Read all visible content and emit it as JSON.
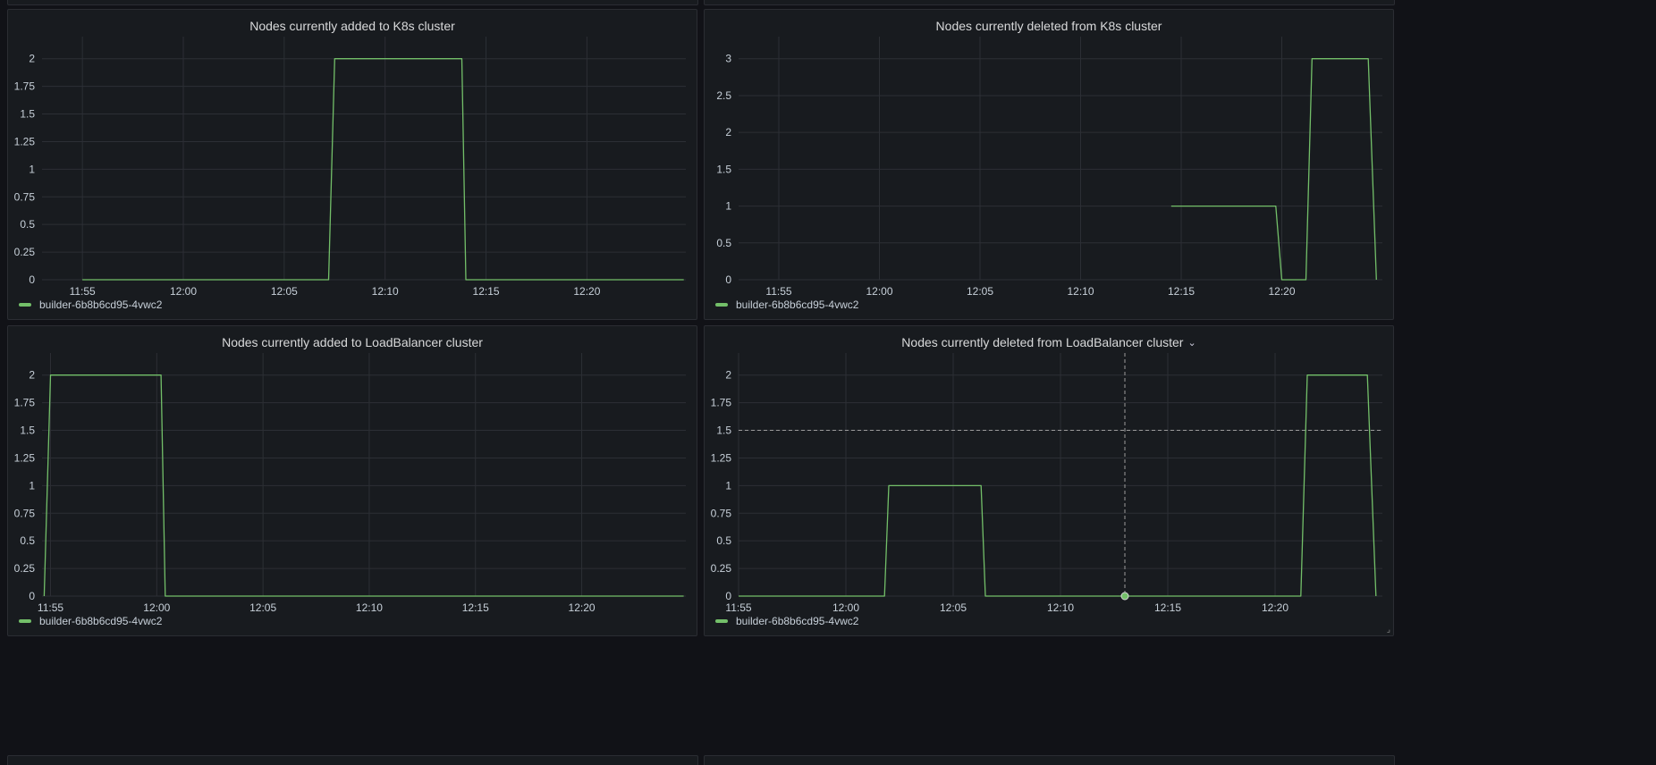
{
  "theme": {
    "background": "#111217",
    "panel_background": "#181b1f",
    "panel_border": "#2b2d33",
    "grid": "#2c2f35",
    "text": "#c7d0d9",
    "title": "#d8d9da",
    "series": "#73bf69",
    "crosshair": "#9b9b9b"
  },
  "panels": [
    {
      "title": "Nodes currently added to K8s cluster",
      "has_menu": false,
      "legend": {
        "label": "builder-6b8b6cd95-4vwc2"
      },
      "chart_data": {
        "type": "line",
        "title": "Nodes currently added to K8s cluster",
        "xlabel": "",
        "ylabel": "",
        "x_range": [
          "11:53",
          "12:24.9"
        ],
        "x_ticks": [
          "11:55",
          "12:00",
          "12:05",
          "12:10",
          "12:15",
          "12:20"
        ],
        "y_ticks": [
          "0",
          "0.25",
          "0.5",
          "0.75",
          "1",
          "1.25",
          "1.5",
          "1.75",
          "2"
        ],
        "ylim": [
          0,
          2.2
        ],
        "grid": true,
        "legend_placement": "bottom-left",
        "series": [
          {
            "name": "builder-6b8b6cd95-4vwc2",
            "points": [
              [
                "11:55",
                0
              ],
              [
                "12:07.2",
                0
              ],
              [
                "12:07.5",
                2
              ],
              [
                "12:13.8",
                2
              ],
              [
                "12:14",
                0
              ],
              [
                "12:24.8",
                0
              ]
            ]
          }
        ]
      }
    },
    {
      "title": "Nodes currently deleted from K8s cluster",
      "has_menu": false,
      "legend": {
        "label": "builder-6b8b6cd95-4vwc2"
      },
      "chart_data": {
        "type": "line",
        "title": "Nodes currently deleted from K8s cluster",
        "xlabel": "",
        "ylabel": "",
        "x_range": [
          "11:53",
          "12:25"
        ],
        "x_ticks": [
          "11:55",
          "12:00",
          "12:05",
          "12:10",
          "12:15",
          "12:20"
        ],
        "y_ticks": [
          "0",
          "0.5",
          "1",
          "1.5",
          "2",
          "2.5",
          "3"
        ],
        "ylim": [
          0,
          3.3
        ],
        "grid": true,
        "legend_placement": "bottom-left",
        "series": [
          {
            "name": "builder-6b8b6cd95-4vwc2",
            "points": [
              [
                "12:14.5",
                1
              ],
              [
                "12:19.7",
                1
              ],
              [
                "12:20",
                0
              ],
              [
                "12:21.2",
                0
              ],
              [
                "12:21.5",
                3
              ],
              [
                "12:24.3",
                3
              ],
              [
                "12:24.7",
                0
              ]
            ]
          }
        ]
      }
    },
    {
      "title": "Nodes currently added to LoadBalancer cluster",
      "has_menu": false,
      "legend": {
        "label": "builder-6b8b6cd95-4vwc2"
      },
      "chart_data": {
        "type": "line",
        "title": "Nodes currently added to LoadBalancer cluster",
        "xlabel": "",
        "ylabel": "",
        "x_range": [
          "11:54.6",
          "12:24.9"
        ],
        "x_ticks": [
          "11:55",
          "12:00",
          "12:05",
          "12:10",
          "12:15",
          "12:20"
        ],
        "y_ticks": [
          "0",
          "0.25",
          "0.5",
          "0.75",
          "1",
          "1.25",
          "1.5",
          "1.75",
          "2"
        ],
        "ylim": [
          0,
          2.2
        ],
        "grid": true,
        "legend_placement": "bottom-left",
        "series": [
          {
            "name": "builder-6b8b6cd95-4vwc2",
            "points": [
              [
                "11:54.7",
                0
              ],
              [
                "11:55",
                2
              ],
              [
                "12:00.2",
                2
              ],
              [
                "12:00.4",
                0
              ],
              [
                "12:24.8",
                0
              ]
            ]
          }
        ]
      }
    },
    {
      "title": "Nodes currently deleted from LoadBalancer cluster",
      "has_menu": true,
      "legend": {
        "label": "builder-6b8b6cd95-4vwc2"
      },
      "chart_data": {
        "type": "line",
        "title": "Nodes currently deleted from LoadBalancer cluster",
        "xlabel": "",
        "ylabel": "",
        "x_range": [
          "11:55",
          "12:25"
        ],
        "x_ticks": [
          "11:55",
          "12:00",
          "12:05",
          "12:10",
          "12:15",
          "12:20"
        ],
        "y_ticks": [
          "0",
          "0.25",
          "0.5",
          "0.75",
          "1",
          "1.25",
          "1.5",
          "1.75",
          "2"
        ],
        "ylim": [
          0,
          2.2
        ],
        "grid": true,
        "legend_placement": "bottom-left",
        "crosshair": {
          "x": "12:13",
          "y": 1.5
        },
        "hover_point": {
          "x": "12:13",
          "y": 0
        },
        "series": [
          {
            "name": "builder-6b8b6cd95-4vwc2",
            "points": [
              [
                "11:55",
                0
              ],
              [
                "12:01.8",
                0
              ],
              [
                "12:02",
                1
              ],
              [
                "12:06.3",
                1
              ],
              [
                "12:06.5",
                0
              ],
              [
                "12:21.2",
                0
              ],
              [
                "12:21.5",
                2
              ],
              [
                "12:24.3",
                2
              ],
              [
                "12:24.7",
                0
              ]
            ]
          }
        ]
      }
    }
  ]
}
